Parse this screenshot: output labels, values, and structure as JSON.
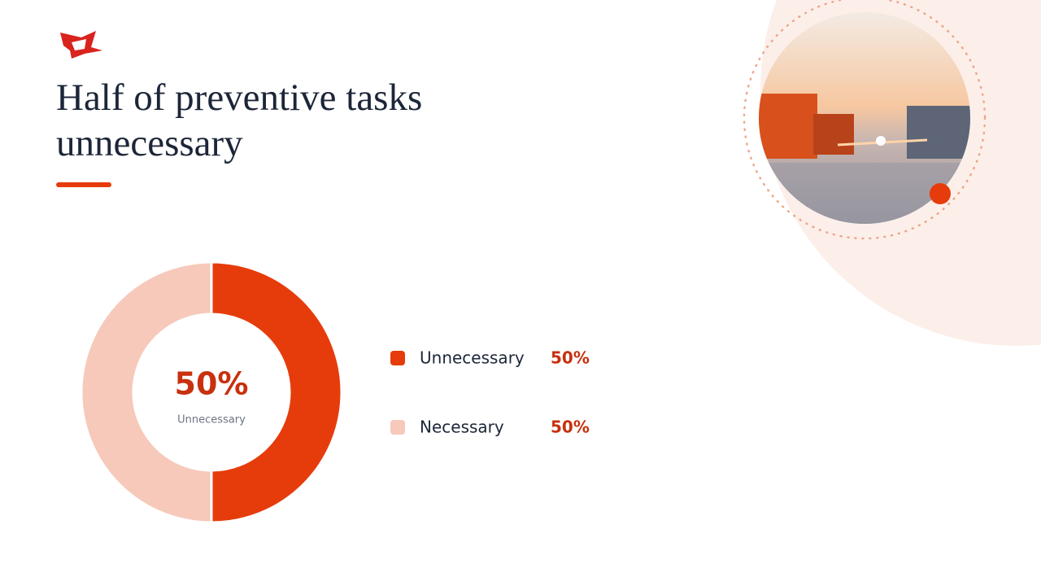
{
  "chart_data": {
    "type": "donut",
    "title": "Half of preventive tasks unnecessary",
    "categories": [
      "Unnecessary",
      "Necessary"
    ],
    "values": [
      50,
      50
    ],
    "value_labels": [
      "50%",
      "50%"
    ],
    "colors": [
      "#e63c0b",
      "#f6c9bb"
    ]
  }
}
